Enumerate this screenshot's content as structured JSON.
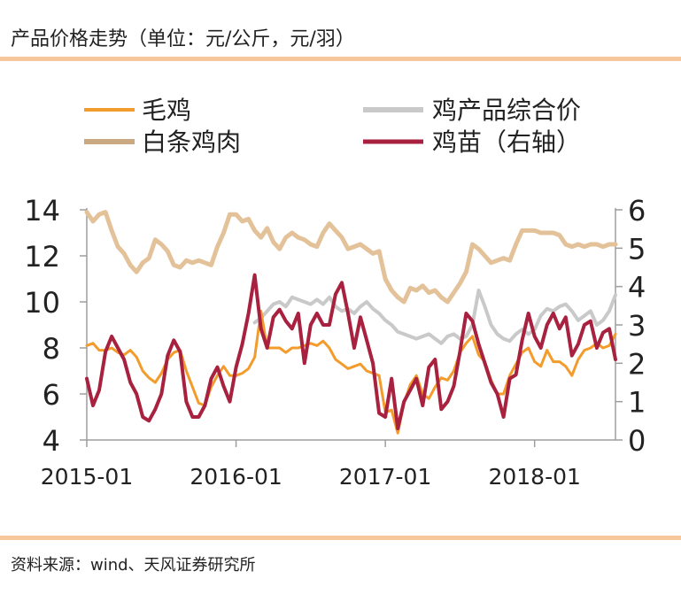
{
  "header": {
    "title": "产品价格走势（单位：元/公斤，元/羽）"
  },
  "footer": {
    "source": "资料来源：wind、天风证券研究所"
  },
  "colors": {
    "maoji": "#f39b2b",
    "product": "#c9c9c9",
    "baitiao": "#e3c29a",
    "chick": "#a8213f",
    "axis": "#9e9e9e",
    "rule": "#f5c79a"
  },
  "chart_data": {
    "type": "line",
    "title": "产品价格走势（单位：元/公斤，元/羽）",
    "x_ticks": [
      {
        "label": "2015-01",
        "t": 0
      },
      {
        "label": "2016-01",
        "t": 12
      },
      {
        "label": "2017-01",
        "t": 24
      },
      {
        "label": "2018-01",
        "t": 36
      }
    ],
    "x_range": [
      0,
      42.5
    ],
    "y_left": {
      "range": [
        4,
        14
      ],
      "ticks": [
        "4",
        "6",
        "8",
        "10",
        "12",
        "14"
      ]
    },
    "y_right": {
      "range": [
        0,
        6
      ],
      "ticks": [
        "0",
        "1",
        "2",
        "3",
        "4",
        "5",
        "6"
      ]
    },
    "legend": [
      "毛鸡",
      "鸡产品综合价",
      "白条鸡肉",
      "鸡苗（右轴）"
    ],
    "series": [
      {
        "name": "白条鸡肉",
        "color_key": "baitiao",
        "axis": "left",
        "t": [
          0,
          0.5,
          1,
          1.5,
          2,
          2.5,
          3,
          3.5,
          4,
          4.5,
          5,
          5.5,
          6,
          6.5,
          7,
          7.5,
          8,
          8.5,
          9,
          9.5,
          10,
          10.5,
          11,
          11.5,
          12,
          12.5,
          13,
          13.5,
          14,
          14.5,
          15,
          15.5,
          16,
          16.5,
          17,
          17.5,
          18,
          18.5,
          19,
          19.5,
          20,
          20.5,
          21,
          21.5,
          22,
          22.5,
          23,
          23.5,
          24,
          24.5,
          25,
          25.5,
          26,
          26.5,
          27,
          27.5,
          28,
          28.5,
          29,
          29.5,
          30,
          30.5,
          31,
          31.5,
          32,
          32.5,
          33,
          33.5,
          34,
          34.5,
          35,
          35.5,
          36,
          36.5,
          37,
          37.5,
          38,
          38.5,
          39,
          39.5,
          40,
          40.5,
          41,
          41.5,
          42,
          42.5
        ],
        "values": [
          13.9,
          13.5,
          13.8,
          13.9,
          13.1,
          12.4,
          12.1,
          11.6,
          11.3,
          11.7,
          11.9,
          12.7,
          12.5,
          12.2,
          11.6,
          11.5,
          11.8,
          11.7,
          11.8,
          11.7,
          11.6,
          12.4,
          13.0,
          13.8,
          13.8,
          13.5,
          13.6,
          13.1,
          12.8,
          13.2,
          12.6,
          12.3,
          12.8,
          13.0,
          12.8,
          12.7,
          12.5,
          12.4,
          13.0,
          13.4,
          13.1,
          12.8,
          12.3,
          12.4,
          12.5,
          12.3,
          12.1,
          12.2,
          11.0,
          10.5,
          10.2,
          10.0,
          10.6,
          10.5,
          10.7,
          10.4,
          10.5,
          10.2,
          10.0,
          10.4,
          10.8,
          11.3,
          12.5,
          12.3,
          12.0,
          11.7,
          11.8,
          11.9,
          11.8,
          12.5,
          13.1,
          13.1,
          13.1,
          13.0,
          13.0,
          13.0,
          12.9,
          12.5,
          12.4,
          12.5,
          12.4,
          12.5,
          12.5,
          12.4,
          12.5,
          12.5
        ]
      },
      {
        "name": "鸡产品综合价",
        "color_key": "product",
        "axis": "left",
        "t": [
          13.5,
          14,
          14.5,
          15,
          15.5,
          16,
          16.5,
          17,
          17.5,
          18,
          18.5,
          19,
          19.5,
          20,
          20.5,
          21,
          21.5,
          22,
          22.5,
          23,
          23.5,
          24,
          24.5,
          25,
          25.5,
          26,
          26.5,
          27,
          27.5,
          28,
          28.5,
          29,
          29.5,
          30,
          30.5,
          31,
          31.5,
          32,
          32.5,
          33,
          33.5,
          34,
          34.5,
          35,
          35.5,
          36,
          36.5,
          37,
          37.5,
          38,
          38.5,
          39,
          39.5,
          40,
          40.5,
          41,
          41.5,
          42,
          42.5
        ],
        "values": [
          9.1,
          9.3,
          9.6,
          9.9,
          10.0,
          9.8,
          10.2,
          10.1,
          10.0,
          9.9,
          10.1,
          9.9,
          10.2,
          9.8,
          9.6,
          9.7,
          9.5,
          9.8,
          10.0,
          9.7,
          9.5,
          9.2,
          9.0,
          8.7,
          8.6,
          8.5,
          8.4,
          8.5,
          8.6,
          8.4,
          8.2,
          8.5,
          8.6,
          8.4,
          8.5,
          9.0,
          10.5,
          9.8,
          9.0,
          8.6,
          8.4,
          8.3,
          8.6,
          8.8,
          8.6,
          8.8,
          9.4,
          9.7,
          9.6,
          9.8,
          9.9,
          9.6,
          9.2,
          9.4,
          9.6,
          9.0,
          9.2,
          9.6,
          10.3
        ]
      },
      {
        "name": "毛鸡",
        "color_key": "maoji",
        "axis": "left",
        "t": [
          0,
          0.5,
          1,
          1.5,
          2,
          2.5,
          3,
          3.5,
          4,
          4.5,
          5,
          5.5,
          6,
          6.5,
          7,
          7.5,
          8,
          8.5,
          9,
          9.5,
          10,
          10.5,
          11,
          11.5,
          12,
          12.5,
          13,
          13.5,
          14,
          14.5,
          15,
          15.5,
          16,
          16.5,
          17,
          17.5,
          18,
          18.5,
          19,
          19.5,
          20,
          20.5,
          21,
          21.5,
          22,
          22.5,
          23,
          23.5,
          24,
          24.5,
          25,
          25.5,
          26,
          26.5,
          27,
          27.5,
          28,
          28.5,
          29,
          29.5,
          30,
          30.5,
          31,
          31.5,
          32,
          32.5,
          33,
          33.5,
          34,
          34.5,
          35,
          35.5,
          36,
          36.5,
          37,
          37.5,
          38,
          38.5,
          39,
          39.5,
          40,
          40.5,
          41,
          41.5,
          42,
          42.5
        ],
        "values": [
          8.1,
          8.2,
          7.9,
          7.9,
          8.0,
          7.8,
          7.7,
          7.9,
          7.6,
          7.0,
          6.7,
          6.5,
          6.9,
          7.5,
          7.8,
          7.9,
          7.0,
          6.3,
          5.6,
          5.5,
          6.3,
          6.8,
          7.2,
          6.8,
          6.8,
          6.9,
          7.1,
          7.6,
          9.6,
          8.0,
          8.0,
          8.0,
          7.8,
          8.0,
          8.0,
          8.1,
          8.2,
          8.1,
          8.3,
          8.0,
          7.5,
          7.3,
          7.1,
          7.2,
          7.3,
          7.0,
          6.9,
          6.8,
          5.2,
          5.3,
          4.3,
          5.6,
          6.4,
          6.8,
          6.0,
          5.8,
          6.3,
          6.7,
          6.6,
          7.0,
          7.8,
          8.2,
          8.5,
          7.7,
          7.4,
          6.6,
          6.0,
          6.0,
          6.8,
          7.3,
          7.8,
          8.0,
          7.4,
          7.2,
          7.9,
          7.4,
          7.4,
          7.2,
          6.8,
          7.5,
          7.9,
          8.0,
          8.2,
          8.0,
          8.1,
          8.6
        ]
      },
      {
        "name": "鸡苗（右轴）",
        "color_key": "chick",
        "axis": "right",
        "t": [
          0,
          0.5,
          1,
          1.5,
          2,
          2.5,
          3,
          3.5,
          4,
          4.5,
          5,
          5.5,
          6,
          6.5,
          7,
          7.5,
          8,
          8.5,
          9,
          9.5,
          10,
          10.5,
          11,
          11.5,
          12,
          12.5,
          13,
          13.5,
          14,
          14.5,
          15,
          15.5,
          16,
          16.5,
          17,
          17.5,
          18,
          18.5,
          19,
          19.5,
          20,
          20.5,
          21,
          21.5,
          22,
          22.5,
          23,
          23.5,
          24,
          24.5,
          25,
          25.5,
          26,
          26.5,
          27,
          27.5,
          28,
          28.5,
          29,
          29.5,
          30,
          30.5,
          31,
          31.5,
          32,
          32.5,
          33,
          33.5,
          34,
          34.5,
          35,
          35.5,
          36,
          36.5,
          37,
          37.5,
          38,
          38.5,
          39,
          39.5,
          40,
          40.5,
          41,
          41.5,
          42,
          42.5
        ],
        "values": [
          1.6,
          0.9,
          1.3,
          2.3,
          2.7,
          2.4,
          2.1,
          1.5,
          1.2,
          0.6,
          0.5,
          0.8,
          1.2,
          2.2,
          2.6,
          2.3,
          1.0,
          0.6,
          0.6,
          0.9,
          1.6,
          1.9,
          1.4,
          1.0,
          1.9,
          2.5,
          3.3,
          4.3,
          2.9,
          2.4,
          3.2,
          3.4,
          3.1,
          2.9,
          3.3,
          2.0,
          3.0,
          3.3,
          3.0,
          3.0,
          3.8,
          4.1,
          3.3,
          2.4,
          3.2,
          2.6,
          2.0,
          0.7,
          0.6,
          1.6,
          0.3,
          1.0,
          1.3,
          1.6,
          0.9,
          1.9,
          2.1,
          0.8,
          1.0,
          1.4,
          2.3,
          3.3,
          3.1,
          2.5,
          2.0,
          1.5,
          1.2,
          0.6,
          1.6,
          1.7,
          2.6,
          3.3,
          2.7,
          2.4,
          3.0,
          3.3,
          2.9,
          3.2,
          2.2,
          2.5,
          3.0,
          3.1,
          2.4,
          2.8,
          2.9,
          2.1
        ]
      }
    ]
  }
}
